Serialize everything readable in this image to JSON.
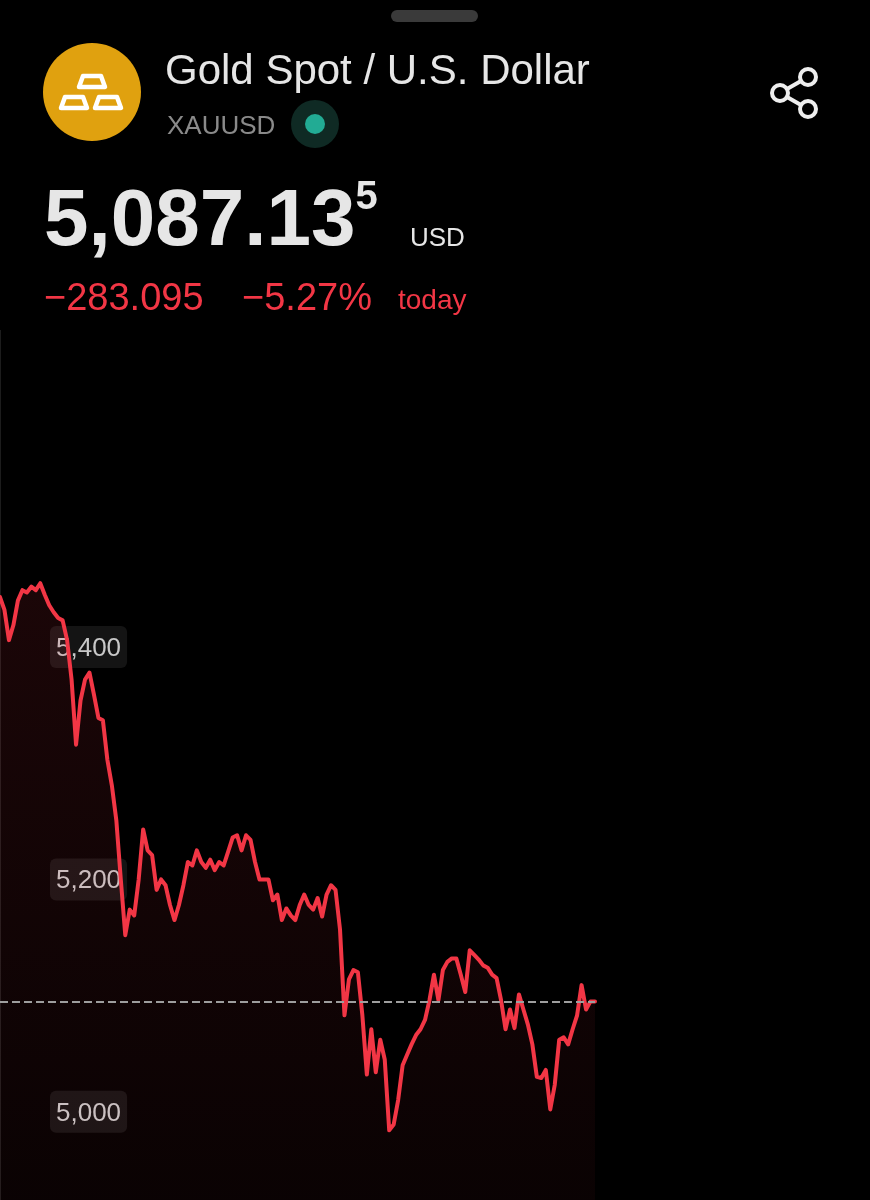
{
  "chart_data": {
    "type": "area",
    "title": "Gold Spot / U.S. Dollar",
    "subtitle": "XAUUSD",
    "annotations": [
      "5,087.13$^{5}$",
      "USD",
      "−283.095",
      "−5.27%",
      "today"
    ],
    "categories": [
      null,
      null,
      null,
      null,
      null,
      null,
      null,
      null,
      null,
      null,
      null,
      null,
      null,
      null,
      null,
      null,
      null,
      null,
      null,
      null,
      null,
      null,
      null,
      null,
      null,
      null,
      null,
      null,
      null,
      null,
      null,
      null,
      null,
      null,
      null,
      null,
      null,
      null,
      null,
      null,
      null,
      null,
      null,
      null,
      null,
      null,
      null,
      null,
      null,
      null,
      null,
      null,
      null,
      null,
      null,
      null,
      null,
      null,
      null,
      null,
      null,
      null,
      null,
      null,
      null,
      null,
      null,
      null,
      null,
      null,
      null,
      null,
      null,
      null,
      null,
      null,
      null,
      null,
      null,
      null,
      null,
      null,
      null,
      null,
      null,
      null,
      null,
      null,
      null,
      null,
      null,
      null,
      null,
      null,
      null,
      null,
      null,
      null,
      null,
      null,
      null,
      null,
      null,
      null,
      null,
      null,
      null,
      null,
      null,
      null,
      null,
      null,
      null,
      null,
      null,
      null,
      null,
      null,
      null,
      null,
      null,
      null,
      null,
      null,
      null,
      null,
      null,
      null,
      null,
      null,
      null,
      null,
      null,
      null
    ],
    "series": [
      {
        "color": "#f23645",
        "values": [
          5443,
          5432,
          5406,
          5419,
          5440,
          5449,
          5447,
          5452,
          5449,
          5455,
          5445,
          5436,
          5430,
          5425,
          5423,
          5406,
          5372,
          5316,
          5354,
          5372,
          5378,
          5359,
          5339,
          5337,
          5303,
          5281,
          5251,
          5200,
          5152,
          5174,
          5169,
          5200,
          5243,
          5225,
          5221,
          5191,
          5200,
          5195,
          5178,
          5165,
          5178,
          5195,
          5215,
          5212,
          5225,
          5215,
          5210,
          5217,
          5208,
          5215,
          5212,
          5224,
          5236,
          5238,
          5225,
          5238,
          5234,
          5215,
          5200,
          5200,
          5200,
          5182,
          5187,
          5165,
          5175,
          5169,
          5165,
          5178,
          5187,
          5178,
          5174,
          5184,
          5168,
          5187,
          5195,
          5191,
          5157,
          5083,
          5114,
          5122,
          5120,
          5083,
          5032,
          5071,
          5034,
          5062,
          5045,
          4984,
          4989,
          5010,
          5040,
          5049,
          5058,
          5066,
          5071,
          5079,
          5096,
          5118,
          5096,
          5122,
          5129,
          5132,
          5132,
          5118,
          5103,
          5139,
          5135,
          5131,
          5126,
          5124,
          5118,
          5115,
          5096,
          5071,
          5088,
          5072,
          5101,
          5088,
          5075,
          5058,
          5030,
          5029,
          5036,
          5002,
          5023,
          5062,
          5064,
          5058,
          5071,
          5083,
          5109,
          5088,
          5095,
          5095
        ]
      }
    ],
    "ylim": [
      4924,
      5673
    ],
    "yticks": [
      {
        "value": 5000,
        "label": "5,000"
      },
      {
        "value": 5200,
        "label": "5,200"
      },
      {
        "value": 5400,
        "label": "5,400"
      }
    ],
    "tick_labels": "y",
    "ref_lines": [
      {
        "axis": "y",
        "value": 5095,
        "color": "#9e9e9e",
        "line_style": "dashed"
      }
    ]
  }
}
